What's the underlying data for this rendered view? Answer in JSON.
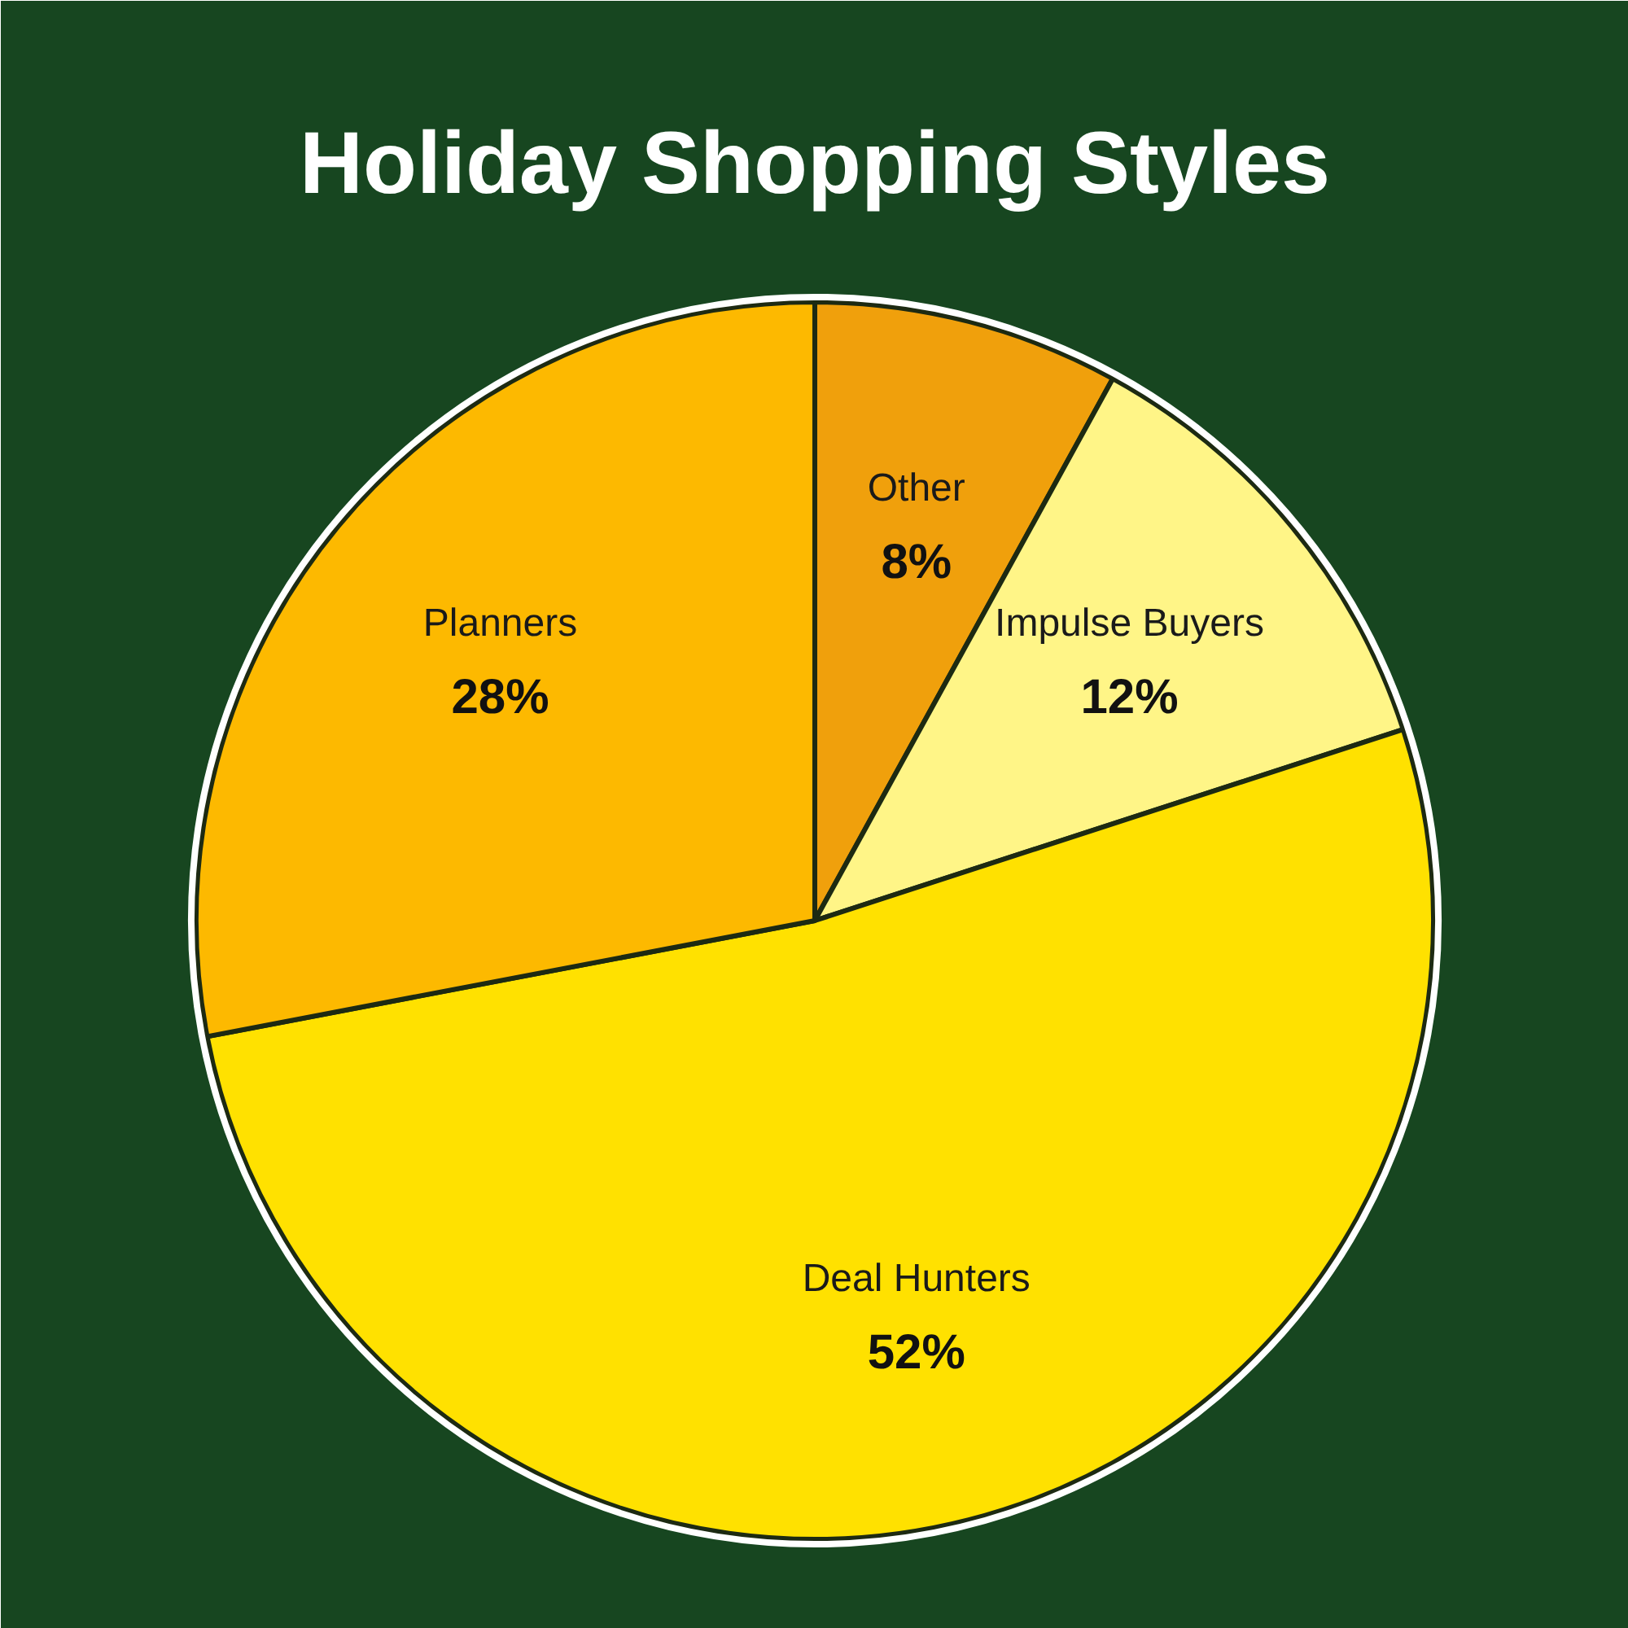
{
  "chart_data": {
    "type": "pie",
    "title": "Holiday Shopping Styles",
    "categories": [
      "Other",
      "Impulse Buyers",
      "Deal Hunters",
      "Planners"
    ],
    "values": [
      8,
      12,
      52,
      28
    ],
    "value_labels": [
      "8%",
      "12%",
      "52%",
      "28%"
    ],
    "colors": [
      "#f0a00c",
      "#fff587",
      "#ffe100",
      "#fdb900"
    ]
  }
}
